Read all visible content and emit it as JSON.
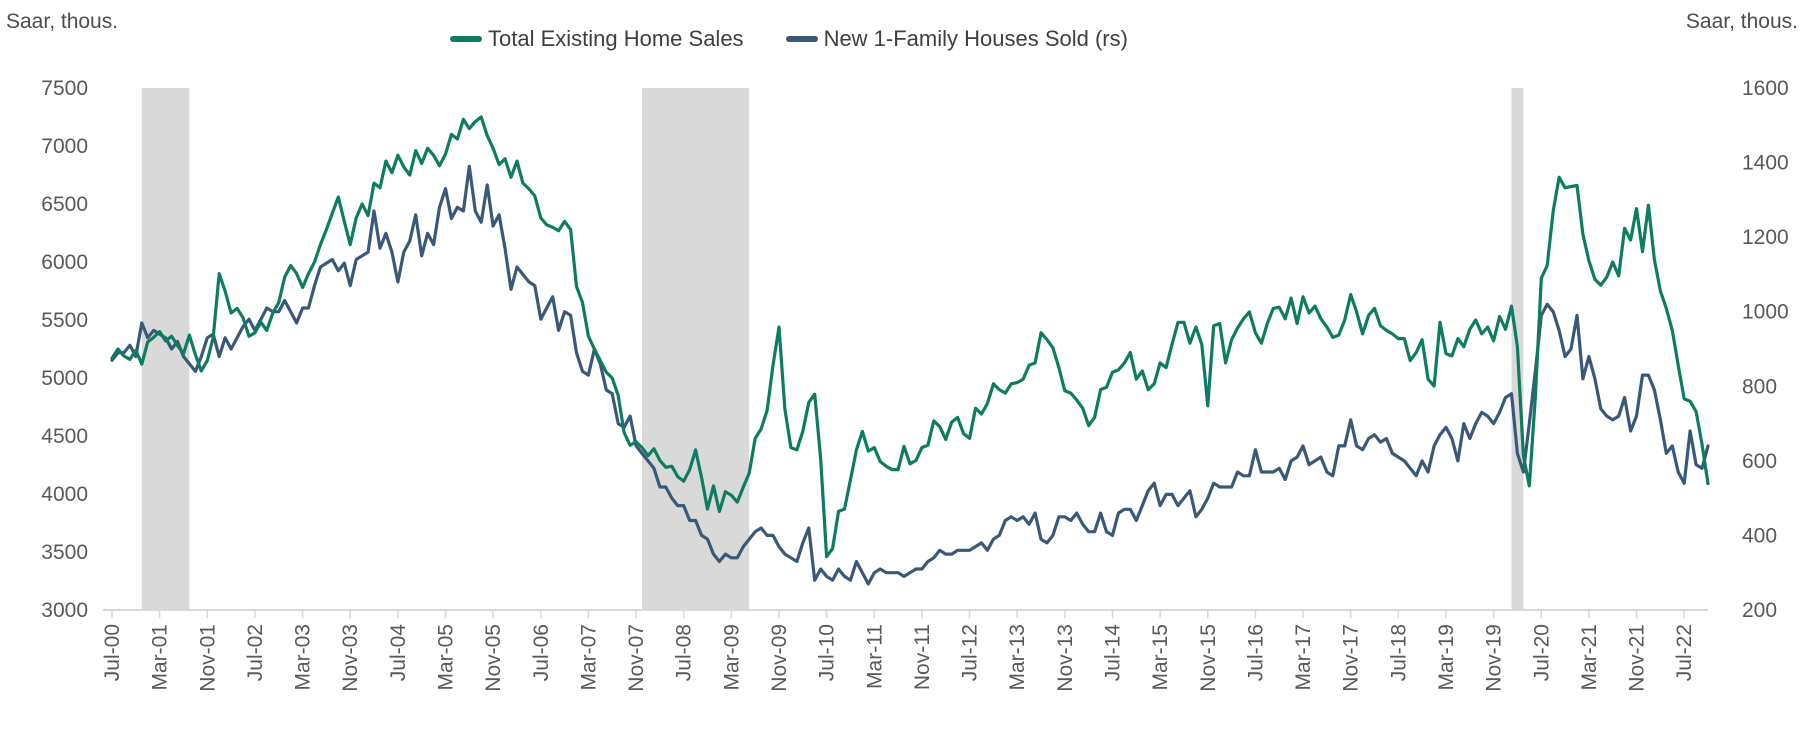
{
  "chart_data": {
    "type": "line",
    "frequency": "monthly",
    "start": "Jul-2000",
    "end": "Nov-2022",
    "grid": false,
    "legend_position": "top-center",
    "left_axis": {
      "title": "Saar, thous.",
      "min": 3000,
      "max": 7500,
      "step": 500,
      "tick_labels": [
        "3000",
        "3500",
        "4000",
        "4500",
        "5000",
        "5500",
        "6000",
        "6500",
        "7000",
        "7500"
      ]
    },
    "right_axis": {
      "title": "Saar, thous.",
      "min": 200,
      "max": 1600,
      "step": 200,
      "tick_labels": [
        "200",
        "400",
        "600",
        "800",
        "1000",
        "1200",
        "1400",
        "1600"
      ]
    },
    "x_tick_labels": [
      "Jul-00",
      "Mar-01",
      "Nov-01",
      "Jul-02",
      "Mar-03",
      "Nov-03",
      "Jul-04",
      "Mar-05",
      "Nov-05",
      "Jul-06",
      "Mar-07",
      "Nov-07",
      "Jul-08",
      "Mar-09",
      "Nov-09",
      "Jul-10",
      "Mar-11",
      "Nov-11",
      "Jul-12",
      "Mar-13",
      "Nov-13",
      "Jul-14",
      "Mar-15",
      "Nov-15",
      "Jul-16",
      "Mar-17",
      "Nov-17",
      "Jul-18",
      "Mar-19",
      "Nov-19",
      "Jul-20",
      "Mar-21",
      "Nov-21",
      "Jul-22"
    ],
    "x_tick_every_months": 8,
    "recession_band_color": "#d9d9d9",
    "recessions": [
      {
        "start": "Dec-2000",
        "end": "Aug-2001",
        "start_index": 5,
        "end_index": 13
      },
      {
        "start": "Dec-2007",
        "end": "Jun-2009",
        "start_index": 89,
        "end_index": 107
      },
      {
        "start": "Feb-2020",
        "end": "Apr-2020",
        "start_index": 235,
        "end_index": 237
      }
    ],
    "series": [
      {
        "name": "Total Existing Home Sales",
        "axis": "left",
        "color": "#0d7c60",
        "values": [
          5170,
          5250,
          5190,
          5160,
          5240,
          5120,
          5310,
          5350,
          5400,
          5320,
          5360,
          5280,
          5210,
          5370,
          5200,
          5060,
          5150,
          5350,
          5900,
          5750,
          5560,
          5600,
          5520,
          5360,
          5390,
          5480,
          5410,
          5560,
          5650,
          5870,
          5970,
          5900,
          5780,
          5900,
          6000,
          6150,
          6280,
          6420,
          6560,
          6350,
          6150,
          6380,
          6500,
          6400,
          6680,
          6640,
          6870,
          6770,
          6920,
          6820,
          6750,
          6960,
          6850,
          6980,
          6920,
          6830,
          6930,
          7100,
          7060,
          7230,
          7150,
          7210,
          7250,
          7090,
          6980,
          6840,
          6890,
          6730,
          6870,
          6680,
          6630,
          6570,
          6380,
          6320,
          6300,
          6270,
          6350,
          6280,
          5790,
          5650,
          5360,
          5250,
          5150,
          5050,
          5000,
          4850,
          4530,
          4420,
          4450,
          4400,
          4330,
          4390,
          4290,
          4230,
          4240,
          4150,
          4110,
          4210,
          4380,
          4140,
          3870,
          4070,
          3850,
          4020,
          3990,
          3930,
          4060,
          4180,
          4480,
          4560,
          4720,
          5110,
          5440,
          4730,
          4400,
          4380,
          4540,
          4790,
          4860,
          4300,
          3460,
          3530,
          3850,
          3870,
          4120,
          4380,
          4540,
          4370,
          4400,
          4280,
          4240,
          4210,
          4210,
          4410,
          4260,
          4290,
          4400,
          4420,
          4630,
          4580,
          4470,
          4620,
          4660,
          4520,
          4480,
          4740,
          4690,
          4780,
          4950,
          4900,
          4870,
          4950,
          4960,
          4990,
          5110,
          5130,
          5390,
          5330,
          5260,
          5090,
          4890,
          4870,
          4810,
          4740,
          4590,
          4660,
          4900,
          4920,
          5050,
          5070,
          5130,
          5220,
          4990,
          5060,
          4900,
          4950,
          5130,
          5090,
          5290,
          5480,
          5480,
          5300,
          5440,
          5290,
          4760,
          5450,
          5470,
          5130,
          5330,
          5430,
          5510,
          5570,
          5390,
          5300,
          5470,
          5600,
          5610,
          5510,
          5690,
          5470,
          5700,
          5560,
          5620,
          5510,
          5440,
          5350,
          5370,
          5500,
          5720,
          5570,
          5380,
          5540,
          5600,
          5450,
          5410,
          5380,
          5340,
          5340,
          5150,
          5220,
          5330,
          4990,
          4930,
          5480,
          5210,
          5190,
          5340,
          5270,
          5420,
          5500,
          5380,
          5440,
          5320,
          5530,
          5420,
          5620,
          5270,
          4330,
          4070,
          4830,
          5860,
          5970,
          6440,
          6730,
          6640,
          6650,
          6660,
          6240,
          6010,
          5850,
          5800,
          5870,
          6000,
          5880,
          6290,
          6190,
          6460,
          6090,
          6490,
          6020,
          5750,
          5600,
          5410,
          5110,
          4820,
          4800,
          4710,
          4430,
          4090
        ]
      },
      {
        "name": "New 1-Family Houses Sold (rs)",
        "axis": "right",
        "color": "#3a5878",
        "values": [
          870,
          890,
          890,
          910,
          880,
          970,
          930,
          950,
          940,
          930,
          900,
          920,
          880,
          860,
          840,
          880,
          930,
          940,
          880,
          930,
          900,
          930,
          960,
          980,
          950,
          980,
          1010,
          1000,
          1000,
          1030,
          1000,
          970,
          1010,
          1010,
          1070,
          1120,
          1130,
          1140,
          1110,
          1130,
          1070,
          1140,
          1150,
          1160,
          1270,
          1170,
          1210,
          1160,
          1080,
          1160,
          1190,
          1260,
          1150,
          1210,
          1180,
          1280,
          1330,
          1250,
          1280,
          1270,
          1390,
          1270,
          1240,
          1340,
          1230,
          1260,
          1170,
          1060,
          1120,
          1100,
          1080,
          1070,
          980,
          1010,
          1040,
          950,
          1000,
          990,
          890,
          840,
          830,
          900,
          860,
          790,
          780,
          700,
          690,
          720,
          640,
          620,
          600,
          580,
          530,
          530,
          500,
          480,
          480,
          440,
          440,
          400,
          390,
          350,
          330,
          350,
          340,
          340,
          370,
          390,
          410,
          420,
          400,
          400,
          370,
          350,
          340,
          330,
          380,
          420,
          280,
          310,
          290,
          280,
          310,
          290,
          280,
          330,
          300,
          270,
          300,
          310,
          300,
          300,
          300,
          290,
          300,
          310,
          310,
          330,
          340,
          360,
          350,
          350,
          360,
          360,
          360,
          370,
          380,
          360,
          390,
          400,
          440,
          450,
          440,
          450,
          430,
          460,
          390,
          380,
          400,
          450,
          450,
          440,
          460,
          430,
          410,
          410,
          460,
          410,
          400,
          460,
          470,
          470,
          440,
          480,
          520,
          540,
          480,
          510,
          510,
          480,
          500,
          520,
          450,
          470,
          500,
          540,
          530,
          530,
          530,
          570,
          560,
          560,
          630,
          570,
          570,
          570,
          580,
          550,
          600,
          610,
          640,
          590,
          600,
          610,
          570,
          560,
          640,
          640,
          710,
          640,
          630,
          660,
          670,
          650,
          660,
          620,
          610,
          600,
          580,
          560,
          600,
          570,
          640,
          670,
          690,
          660,
          600,
          700,
          660,
          700,
          730,
          720,
          700,
          730,
          770,
          780,
          620,
          570,
          700,
          840,
          990,
          1020,
          1000,
          950,
          880,
          900,
          990,
          820,
          880,
          820,
          740,
          720,
          710,
          720,
          770,
          680,
          720,
          830,
          830,
          790,
          710,
          620,
          640,
          570,
          540,
          680,
          590,
          580,
          640
        ]
      }
    ]
  }
}
